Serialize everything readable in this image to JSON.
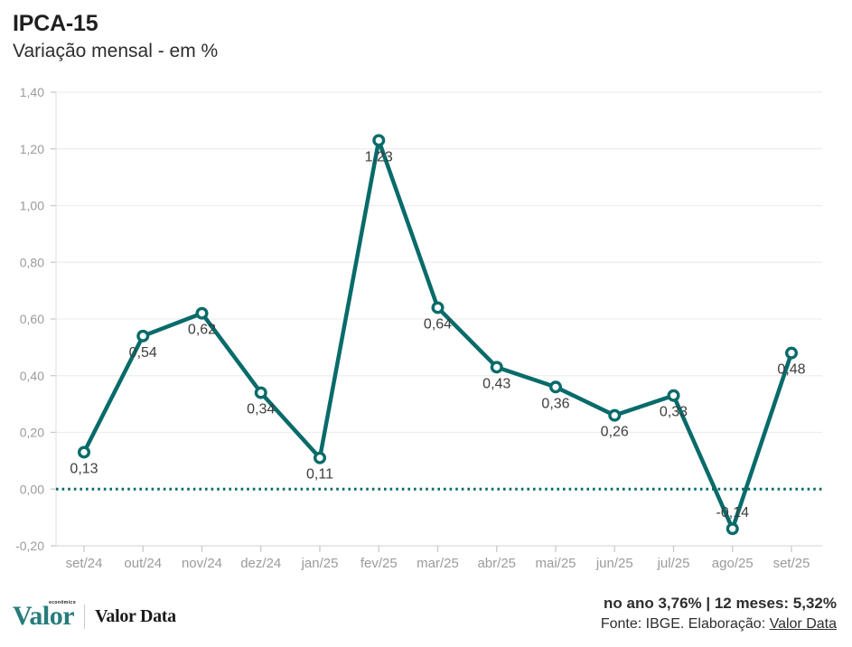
{
  "header": {
    "title": "IPCA-15",
    "subtitle": "Variação mensal - em %"
  },
  "chart_data": {
    "type": "line",
    "title": "IPCA-15",
    "subtitle": "Variação mensal - em %",
    "categories": [
      "set/24",
      "out/24",
      "nov/24",
      "dez/24",
      "jan/25",
      "fev/25",
      "mar/25",
      "abr/25",
      "mai/25",
      "jun/25",
      "jul/25",
      "ago/25",
      "set/25"
    ],
    "values": [
      0.13,
      0.54,
      0.62,
      0.34,
      0.11,
      1.23,
      0.64,
      0.43,
      0.36,
      0.26,
      0.33,
      -0.14,
      0.48
    ],
    "point_labels": [
      "0,13",
      "0,54",
      "0,62",
      "0,34",
      "0,11",
      "1,23",
      "0,64",
      "0,43",
      "0,36",
      "0,26",
      "0,33",
      "-0,14",
      "0,48"
    ],
    "label_positions": [
      "below",
      "below",
      "below",
      "below",
      "below",
      "below",
      "below",
      "below",
      "below",
      "below",
      "below",
      "above",
      "below"
    ],
    "ylim": [
      -0.2,
      1.4
    ],
    "yticks": [
      1.4,
      1.2,
      1.0,
      0.8,
      0.6,
      0.4,
      0.2,
      0.0,
      -0.2
    ],
    "ytick_labels": [
      "1,40",
      "1,20",
      "1,00",
      "0,80",
      "0,60",
      "0,40",
      "0,20",
      "0,00",
      "-0,20"
    ],
    "grid": "horizontal",
    "legend": "none",
    "line_color": "#086b6a",
    "marker": "open-circle",
    "zero_line_style": "dotted"
  },
  "footer": {
    "brand": {
      "valor": "Valor",
      "valor_superscript": "econômico",
      "valor_data": "Valor Data"
    },
    "summary": "no ano 3,76% | 12 meses: 5,32%",
    "source_text": "Fonte: IBGE. Elaboração: ",
    "source_link": "Valor Data"
  }
}
